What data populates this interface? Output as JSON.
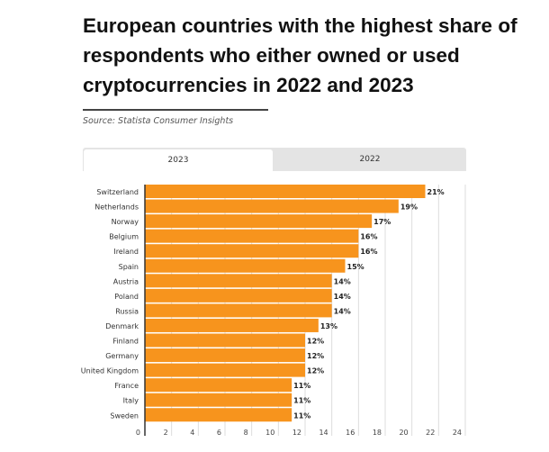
{
  "title": "European countries with the highest share of respondents who either owned or used cryptocurrencies in 2022 and 2023",
  "source": "Source: Statista Consumer Insights",
  "tabs": [
    {
      "label": "2023",
      "active": true
    },
    {
      "label": "2022",
      "active": false
    }
  ],
  "chart_data": {
    "type": "bar",
    "orientation": "horizontal",
    "categories": [
      "Switzerland",
      "Netherlands",
      "Norway",
      "Belgium",
      "Ireland",
      "Spain",
      "Austria",
      "Poland",
      "Russia",
      "Denmark",
      "Finland",
      "Germany",
      "United Kingdom",
      "France",
      "Italy",
      "Sweden"
    ],
    "values": [
      21,
      19,
      17,
      16,
      16,
      15,
      14,
      14,
      14,
      13,
      12,
      12,
      12,
      11,
      11,
      11
    ],
    "labels": [
      "21%",
      "19%",
      "17%",
      "16%",
      "16%",
      "15%",
      "14%",
      "14%",
      "14%",
      "13%",
      "12%",
      "12%",
      "12%",
      "11%",
      "11%",
      "11%"
    ],
    "xlim": [
      0,
      24
    ],
    "xticks": [
      "0",
      "2",
      "4",
      "6",
      "8",
      "10",
      "12",
      "14",
      "16",
      "18",
      "20",
      "22",
      "24"
    ],
    "grid": true,
    "color": "#f7941d",
    "series_name": "2023"
  }
}
